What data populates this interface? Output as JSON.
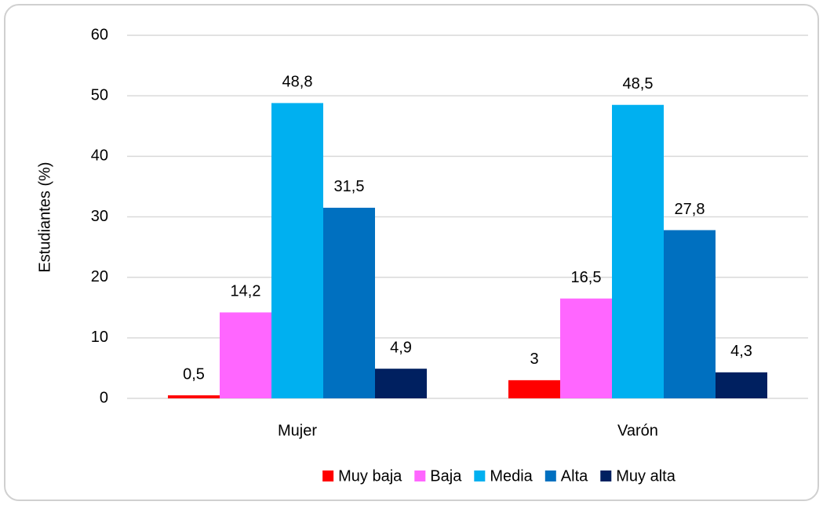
{
  "chart_data": {
    "type": "bar",
    "categories": [
      "Mujer",
      "Varón"
    ],
    "ylabel": "Estudiantes (%)",
    "ylim": [
      0,
      60
    ],
    "yticks": [
      0,
      10,
      20,
      30,
      40,
      50,
      60
    ],
    "grid": true,
    "legend": "bottom",
    "series": [
      {
        "name": "Muy baja",
        "color": "#ff0000",
        "values": [
          0.5,
          3
        ],
        "value_labels": [
          "0,5",
          "3"
        ]
      },
      {
        "name": "Baja",
        "color": "#ff66ff",
        "values": [
          14.2,
          16.5
        ],
        "value_labels": [
          "14,2",
          "16,5"
        ]
      },
      {
        "name": "Media",
        "color": "#00b0f0",
        "values": [
          48.8,
          48.5
        ],
        "value_labels": [
          "48,8",
          "48,5"
        ]
      },
      {
        "name": "Alta",
        "color": "#0070c0",
        "values": [
          31.5,
          27.8
        ],
        "value_labels": [
          "31,5",
          "27,8"
        ]
      },
      {
        "name": "Muy alta",
        "color": "#002060",
        "values": [
          4.9,
          4.3
        ],
        "value_labels": [
          "4,9",
          "4,3"
        ]
      }
    ]
  }
}
